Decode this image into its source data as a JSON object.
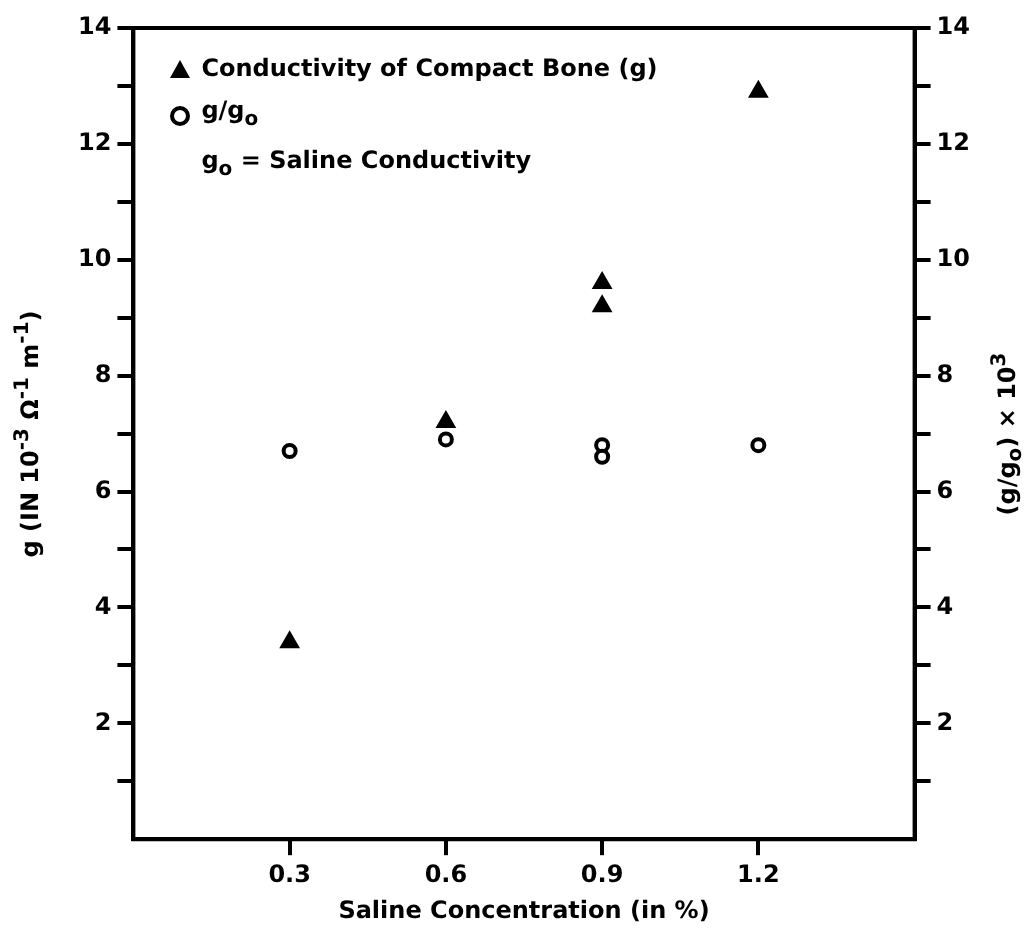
{
  "chart_data": {
    "type": "scatter",
    "xlabel": "Saline Concentration (in %)",
    "ylabel": "g (IN 10$^{-3}$ Ω$^{-1}$ m$^{-1}$)",
    "y2label": "(g/g$_{o}$) × 10$^{3}$",
    "xlim": [
      0,
      1.5
    ],
    "xticks": [
      0.3,
      0.6,
      0.9,
      1.2
    ],
    "ylim": [
      0,
      14
    ],
    "yticks": [
      {
        "value": 1,
        "label": null
      },
      2,
      {
        "value": 3,
        "label": null
      },
      4,
      {
        "value": 5,
        "label": null
      },
      6,
      {
        "value": 7,
        "label": null
      },
      8,
      {
        "value": 9,
        "label": null
      },
      10,
      {
        "value": 11,
        "label": null
      },
      12,
      {
        "value": 13,
        "label": null
      },
      14
    ],
    "y2lim": [
      0,
      14
    ],
    "y2ticks": [
      {
        "value": 1,
        "label": null
      },
      2,
      {
        "value": 3,
        "label": null
      },
      4,
      {
        "value": 5,
        "label": null
      },
      6,
      {
        "value": 7,
        "label": null
      },
      8,
      {
        "value": 9,
        "label": null
      },
      10,
      {
        "value": 11,
        "label": null
      },
      12,
      {
        "value": 13,
        "label": null
      },
      14
    ],
    "legend": "top left",
    "grid": false,
    "series": [
      {
        "name": "Conductivity of Compact Bone (g)",
        "color": "#000000",
        "marker": "triangle",
        "x": [
          0.3,
          0.6,
          0.9,
          0.9,
          1.2
        ],
        "values": [
          3.4,
          7.2,
          9.6,
          9.2,
          12.9
        ]
      },
      {
        "name": "g/g$_{o}$",
        "color": "#000000",
        "marker": "circle",
        "axis": "y2",
        "x": [
          0.3,
          0.6,
          0.9,
          0.9,
          1.2
        ],
        "values": [
          6.7,
          6.9,
          6.8,
          6.6,
          6.8
        ]
      }
    ],
    "annotations": [
      "g$_{o}$ = Saline Conductivity"
    ]
  }
}
